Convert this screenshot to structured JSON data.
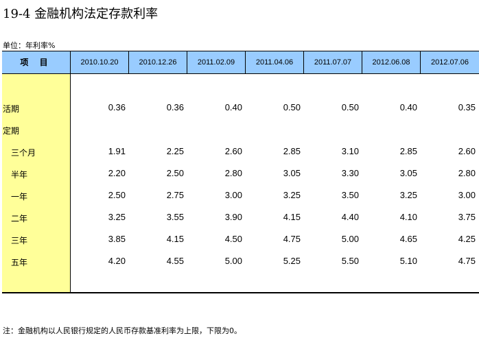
{
  "title": "19-4  金融机构法定存款利率",
  "unit": "单位：年利率%",
  "header": {
    "item": "项 目",
    "dates": [
      "2010.10.20",
      "2010.12.26",
      "2011.02.09",
      "2011.04.06",
      "2011.07.07",
      "2012.06.08",
      "2012.07.06"
    ]
  },
  "rows": [
    {
      "label": "活期",
      "values": [
        "0.36",
        "0.36",
        "0.40",
        "0.50",
        "0.50",
        "0.40",
        "0.35"
      ]
    },
    {
      "label": "定期",
      "values": []
    },
    {
      "label": "三个月",
      "values": [
        "1.91",
        "2.25",
        "2.60",
        "2.85",
        "3.10",
        "2.85",
        "2.60"
      ]
    },
    {
      "label": "半年",
      "values": [
        "2.20",
        "2.50",
        "2.80",
        "3.05",
        "3.30",
        "3.05",
        "2.80"
      ]
    },
    {
      "label": "一年",
      "values": [
        "2.50",
        "2.75",
        "3.00",
        "3.25",
        "3.50",
        "3.25",
        "3.00"
      ]
    },
    {
      "label": "二年",
      "values": [
        "3.25",
        "3.55",
        "3.90",
        "4.15",
        "4.40",
        "4.10",
        "3.75"
      ]
    },
    {
      "label": "三年",
      "values": [
        "3.85",
        "4.15",
        "4.50",
        "4.75",
        "5.00",
        "4.65",
        "4.25"
      ]
    },
    {
      "label": "五年",
      "values": [
        "4.20",
        "4.55",
        "5.00",
        "5.25",
        "5.50",
        "5.10",
        "4.75"
      ]
    }
  ],
  "note": "注：金融机构以人民银行规定的人民币存款基准利率为上限，下限为0。"
}
